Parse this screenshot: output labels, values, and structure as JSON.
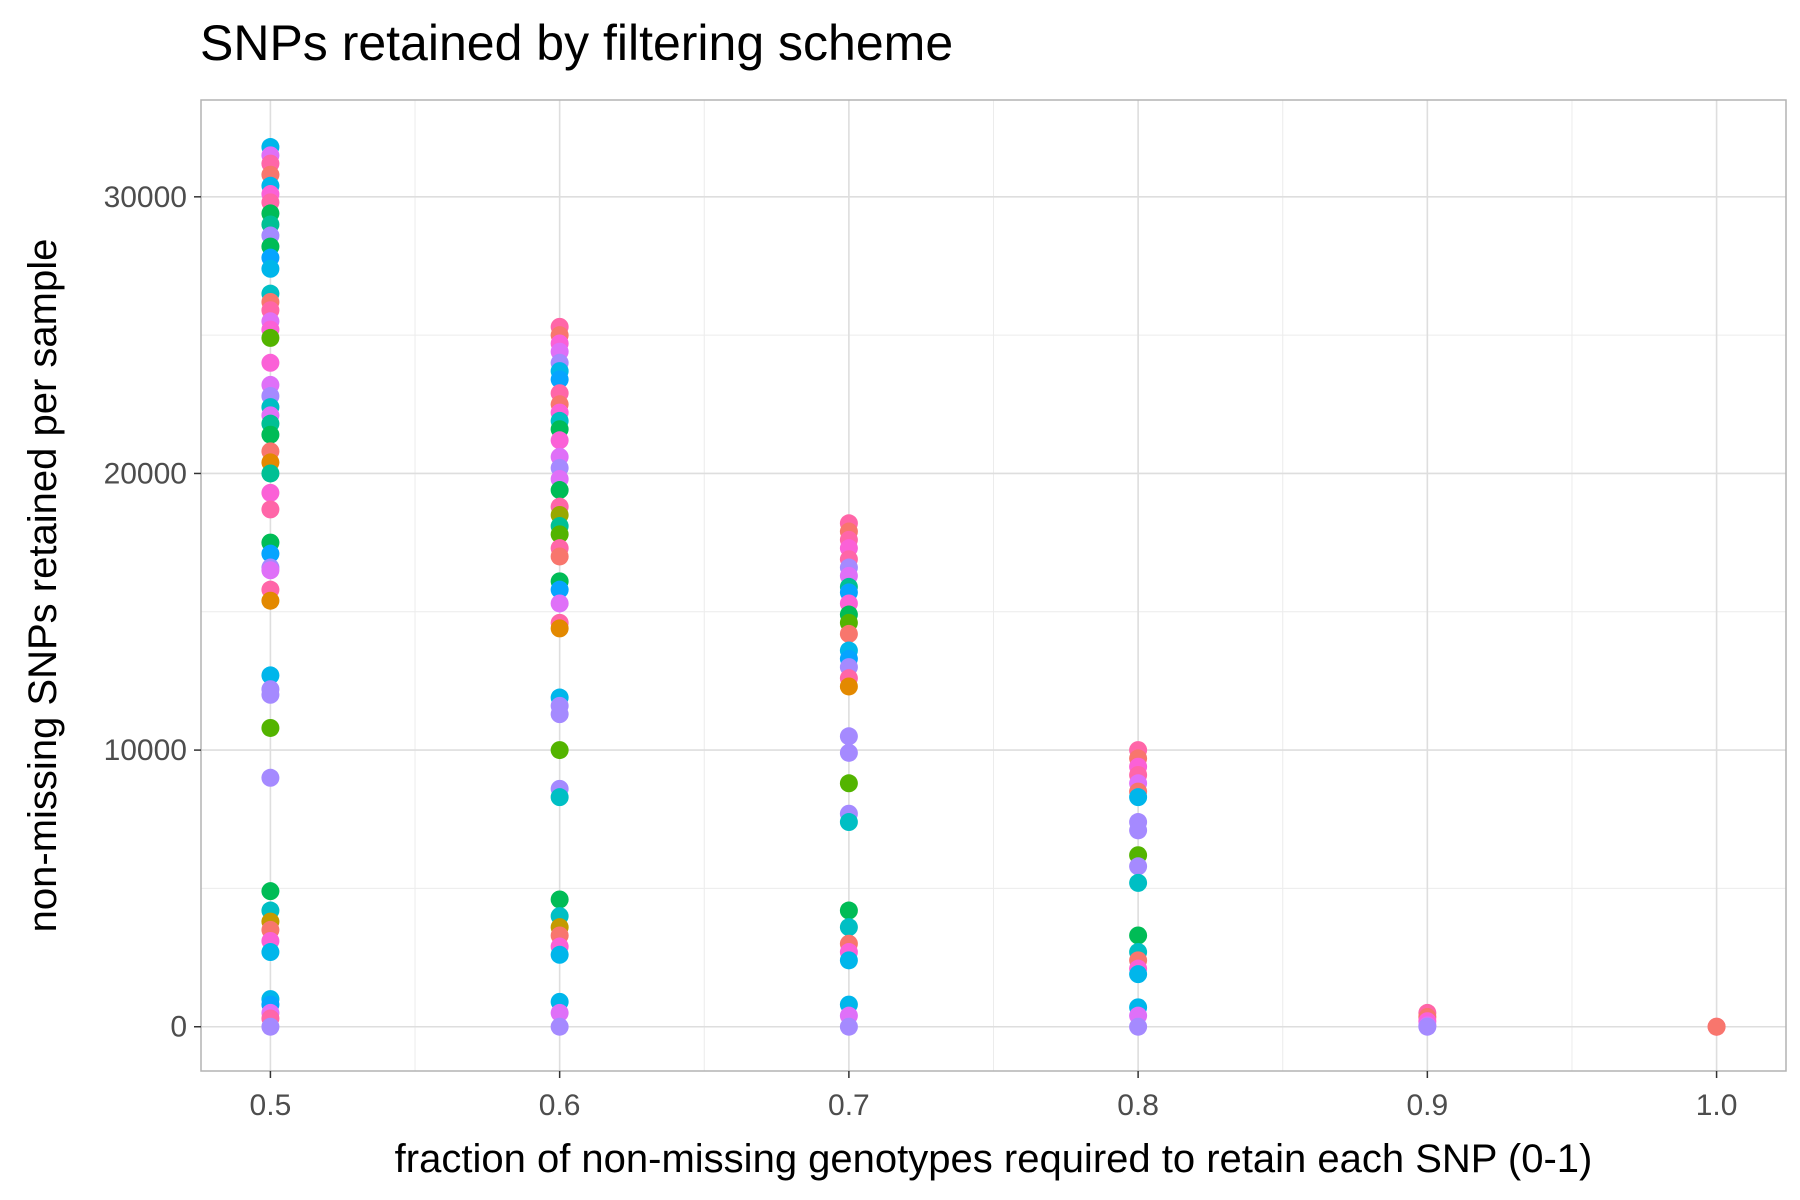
{
  "chart_data": {
    "type": "scatter",
    "title": "SNPs retained by filtering scheme",
    "xlabel": "fraction of non-missing genotypes required to retain each SNP (0-1)",
    "ylabel": "non-missing SNPs retained per sample",
    "xlim": [
      0.476,
      1.024
    ],
    "ylim": [
      -1600,
      33500
    ],
    "x_ticks": [
      "0.5",
      "0.6",
      "0.7",
      "0.8",
      "0.9",
      "1.0"
    ],
    "x_tick_values": [
      0.5,
      0.6,
      0.7,
      0.8,
      0.9,
      1.0
    ],
    "y_ticks": [
      "0",
      "10000",
      "20000",
      "30000"
    ],
    "y_tick_values": [
      0,
      10000,
      20000,
      30000
    ],
    "grid": true,
    "legend": "none",
    "palette": [
      "#F8766D",
      "#E38900",
      "#C49A00",
      "#99A800",
      "#53B400",
      "#00BC56",
      "#00C094",
      "#00BFC4",
      "#00B6EB",
      "#06A4FF",
      "#A58AFF",
      "#DF70F8",
      "#FB61D7",
      "#FF66A8"
    ],
    "points": [
      {
        "x": 0.5,
        "y": 31800,
        "c": 8
      },
      {
        "x": 0.5,
        "y": 31500,
        "c": 11
      },
      {
        "x": 0.5,
        "y": 31200,
        "c": 13
      },
      {
        "x": 0.5,
        "y": 30800,
        "c": 0
      },
      {
        "x": 0.5,
        "y": 30400,
        "c": 8
      },
      {
        "x": 0.5,
        "y": 30100,
        "c": 12
      },
      {
        "x": 0.5,
        "y": 29800,
        "c": 13
      },
      {
        "x": 0.5,
        "y": 29400,
        "c": 5
      },
      {
        "x": 0.5,
        "y": 29000,
        "c": 6
      },
      {
        "x": 0.5,
        "y": 28600,
        "c": 10
      },
      {
        "x": 0.5,
        "y": 28200,
        "c": 5
      },
      {
        "x": 0.5,
        "y": 27800,
        "c": 9
      },
      {
        "x": 0.5,
        "y": 27400,
        "c": 8
      },
      {
        "x": 0.5,
        "y": 26500,
        "c": 7
      },
      {
        "x": 0.5,
        "y": 26200,
        "c": 0
      },
      {
        "x": 0.5,
        "y": 25900,
        "c": 13
      },
      {
        "x": 0.5,
        "y": 25500,
        "c": 11
      },
      {
        "x": 0.5,
        "y": 25200,
        "c": 12
      },
      {
        "x": 0.5,
        "y": 24900,
        "c": 4
      },
      {
        "x": 0.5,
        "y": 24000,
        "c": 12
      },
      {
        "x": 0.5,
        "y": 23200,
        "c": 11
      },
      {
        "x": 0.5,
        "y": 22800,
        "c": 10
      },
      {
        "x": 0.5,
        "y": 22400,
        "c": 7
      },
      {
        "x": 0.5,
        "y": 22100,
        "c": 11
      },
      {
        "x": 0.5,
        "y": 21800,
        "c": 6
      },
      {
        "x": 0.5,
        "y": 21400,
        "c": 5
      },
      {
        "x": 0.5,
        "y": 20800,
        "c": 0
      },
      {
        "x": 0.5,
        "y": 20400,
        "c": 1
      },
      {
        "x": 0.5,
        "y": 20000,
        "c": 6
      },
      {
        "x": 0.5,
        "y": 19300,
        "c": 12
      },
      {
        "x": 0.5,
        "y": 18700,
        "c": 13
      },
      {
        "x": 0.5,
        "y": 17500,
        "c": 5
      },
      {
        "x": 0.5,
        "y": 17100,
        "c": 9
      },
      {
        "x": 0.5,
        "y": 16600,
        "c": 10
      },
      {
        "x": 0.5,
        "y": 16500,
        "c": 11
      },
      {
        "x": 0.5,
        "y": 15800,
        "c": 13
      },
      {
        "x": 0.5,
        "y": 15400,
        "c": 1
      },
      {
        "x": 0.5,
        "y": 12700,
        "c": 8
      },
      {
        "x": 0.5,
        "y": 12200,
        "c": 10
      },
      {
        "x": 0.5,
        "y": 12000,
        "c": 10
      },
      {
        "x": 0.5,
        "y": 10800,
        "c": 4
      },
      {
        "x": 0.5,
        "y": 9000,
        "c": 10
      },
      {
        "x": 0.5,
        "y": 4900,
        "c": 5
      },
      {
        "x": 0.5,
        "y": 4200,
        "c": 7
      },
      {
        "x": 0.5,
        "y": 3800,
        "c": 2
      },
      {
        "x": 0.5,
        "y": 3500,
        "c": 0
      },
      {
        "x": 0.5,
        "y": 3100,
        "c": 12
      },
      {
        "x": 0.5,
        "y": 2700,
        "c": 8
      },
      {
        "x": 0.5,
        "y": 1000,
        "c": 8
      },
      {
        "x": 0.5,
        "y": 800,
        "c": 9
      },
      {
        "x": 0.5,
        "y": 500,
        "c": 11
      },
      {
        "x": 0.5,
        "y": 300,
        "c": 13
      },
      {
        "x": 0.5,
        "y": 0,
        "c": 10
      },
      {
        "x": 0.6,
        "y": 25300,
        "c": 13
      },
      {
        "x": 0.6,
        "y": 25000,
        "c": 0
      },
      {
        "x": 0.6,
        "y": 24700,
        "c": 12
      },
      {
        "x": 0.6,
        "y": 24400,
        "c": 11
      },
      {
        "x": 0.6,
        "y": 24000,
        "c": 10
      },
      {
        "x": 0.6,
        "y": 23700,
        "c": 8
      },
      {
        "x": 0.6,
        "y": 23400,
        "c": 9
      },
      {
        "x": 0.6,
        "y": 22900,
        "c": 13
      },
      {
        "x": 0.6,
        "y": 22500,
        "c": 0
      },
      {
        "x": 0.6,
        "y": 22200,
        "c": 12
      },
      {
        "x": 0.6,
        "y": 21900,
        "c": 7
      },
      {
        "x": 0.6,
        "y": 21600,
        "c": 5
      },
      {
        "x": 0.6,
        "y": 21200,
        "c": 12
      },
      {
        "x": 0.6,
        "y": 20600,
        "c": 11
      },
      {
        "x": 0.6,
        "y": 20200,
        "c": 10
      },
      {
        "x": 0.6,
        "y": 19800,
        "c": 11
      },
      {
        "x": 0.6,
        "y": 19400,
        "c": 5
      },
      {
        "x": 0.6,
        "y": 18800,
        "c": 13
      },
      {
        "x": 0.6,
        "y": 18500,
        "c": 3
      },
      {
        "x": 0.6,
        "y": 18100,
        "c": 6
      },
      {
        "x": 0.6,
        "y": 17800,
        "c": 4
      },
      {
        "x": 0.6,
        "y": 17300,
        "c": 13
      },
      {
        "x": 0.6,
        "y": 17000,
        "c": 0
      },
      {
        "x": 0.6,
        "y": 16100,
        "c": 5
      },
      {
        "x": 0.6,
        "y": 15800,
        "c": 9
      },
      {
        "x": 0.6,
        "y": 15300,
        "c": 11
      },
      {
        "x": 0.6,
        "y": 14600,
        "c": 13
      },
      {
        "x": 0.6,
        "y": 14400,
        "c": 1
      },
      {
        "x": 0.6,
        "y": 11900,
        "c": 8
      },
      {
        "x": 0.6,
        "y": 11600,
        "c": 10
      },
      {
        "x": 0.6,
        "y": 11300,
        "c": 10
      },
      {
        "x": 0.6,
        "y": 10000,
        "c": 4
      },
      {
        "x": 0.6,
        "y": 8600,
        "c": 10
      },
      {
        "x": 0.6,
        "y": 8300,
        "c": 7
      },
      {
        "x": 0.6,
        "y": 4600,
        "c": 5
      },
      {
        "x": 0.6,
        "y": 4000,
        "c": 7
      },
      {
        "x": 0.6,
        "y": 3600,
        "c": 2
      },
      {
        "x": 0.6,
        "y": 3300,
        "c": 0
      },
      {
        "x": 0.6,
        "y": 2900,
        "c": 12
      },
      {
        "x": 0.6,
        "y": 2600,
        "c": 8
      },
      {
        "x": 0.6,
        "y": 900,
        "c": 8
      },
      {
        "x": 0.6,
        "y": 500,
        "c": 11
      },
      {
        "x": 0.6,
        "y": 0,
        "c": 10
      },
      {
        "x": 0.7,
        "y": 18200,
        "c": 13
      },
      {
        "x": 0.7,
        "y": 17900,
        "c": 0
      },
      {
        "x": 0.7,
        "y": 17600,
        "c": 13
      },
      {
        "x": 0.7,
        "y": 17300,
        "c": 12
      },
      {
        "x": 0.7,
        "y": 16900,
        "c": 13
      },
      {
        "x": 0.7,
        "y": 16600,
        "c": 10
      },
      {
        "x": 0.7,
        "y": 16300,
        "c": 11
      },
      {
        "x": 0.7,
        "y": 15900,
        "c": 6
      },
      {
        "x": 0.7,
        "y": 15700,
        "c": 9
      },
      {
        "x": 0.7,
        "y": 15300,
        "c": 12
      },
      {
        "x": 0.7,
        "y": 14900,
        "c": 5
      },
      {
        "x": 0.7,
        "y": 14600,
        "c": 4
      },
      {
        "x": 0.7,
        "y": 14200,
        "c": 0
      },
      {
        "x": 0.7,
        "y": 13600,
        "c": 8
      },
      {
        "x": 0.7,
        "y": 13300,
        "c": 9
      },
      {
        "x": 0.7,
        "y": 13000,
        "c": 10
      },
      {
        "x": 0.7,
        "y": 12600,
        "c": 13
      },
      {
        "x": 0.7,
        "y": 12300,
        "c": 1
      },
      {
        "x": 0.7,
        "y": 10500,
        "c": 10
      },
      {
        "x": 0.7,
        "y": 9900,
        "c": 10
      },
      {
        "x": 0.7,
        "y": 8800,
        "c": 4
      },
      {
        "x": 0.7,
        "y": 7700,
        "c": 10
      },
      {
        "x": 0.7,
        "y": 7400,
        "c": 7
      },
      {
        "x": 0.7,
        "y": 4200,
        "c": 5
      },
      {
        "x": 0.7,
        "y": 3600,
        "c": 7
      },
      {
        "x": 0.7,
        "y": 3000,
        "c": 0
      },
      {
        "x": 0.7,
        "y": 2700,
        "c": 12
      },
      {
        "x": 0.7,
        "y": 2400,
        "c": 8
      },
      {
        "x": 0.7,
        "y": 800,
        "c": 8
      },
      {
        "x": 0.7,
        "y": 400,
        "c": 11
      },
      {
        "x": 0.7,
        "y": 0,
        "c": 10
      },
      {
        "x": 0.8,
        "y": 10000,
        "c": 13
      },
      {
        "x": 0.8,
        "y": 9700,
        "c": 0
      },
      {
        "x": 0.8,
        "y": 9400,
        "c": 12
      },
      {
        "x": 0.8,
        "y": 9100,
        "c": 13
      },
      {
        "x": 0.8,
        "y": 8800,
        "c": 11
      },
      {
        "x": 0.8,
        "y": 8500,
        "c": 0
      },
      {
        "x": 0.8,
        "y": 8300,
        "c": 8
      },
      {
        "x": 0.8,
        "y": 7400,
        "c": 10
      },
      {
        "x": 0.8,
        "y": 7100,
        "c": 10
      },
      {
        "x": 0.8,
        "y": 6200,
        "c": 4
      },
      {
        "x": 0.8,
        "y": 5800,
        "c": 10
      },
      {
        "x": 0.8,
        "y": 5200,
        "c": 7
      },
      {
        "x": 0.8,
        "y": 3300,
        "c": 5
      },
      {
        "x": 0.8,
        "y": 2700,
        "c": 7
      },
      {
        "x": 0.8,
        "y": 2400,
        "c": 0
      },
      {
        "x": 0.8,
        "y": 2100,
        "c": 12
      },
      {
        "x": 0.8,
        "y": 1900,
        "c": 8
      },
      {
        "x": 0.8,
        "y": 700,
        "c": 8
      },
      {
        "x": 0.8,
        "y": 400,
        "c": 11
      },
      {
        "x": 0.8,
        "y": 0,
        "c": 10
      },
      {
        "x": 0.9,
        "y": 500,
        "c": 13
      },
      {
        "x": 0.9,
        "y": 350,
        "c": 0
      },
      {
        "x": 0.9,
        "y": 200,
        "c": 12
      },
      {
        "x": 0.9,
        "y": 50,
        "c": 11
      },
      {
        "x": 0.9,
        "y": 0,
        "c": 10
      },
      {
        "x": 1.0,
        "y": 0,
        "c": 13
      },
      {
        "x": 1.0,
        "y": 0,
        "c": 0
      }
    ]
  }
}
